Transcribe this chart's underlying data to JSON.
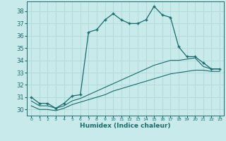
{
  "title": "",
  "xlabel": "Humidex (Indice chaleur)",
  "background_color": "#c8eaea",
  "grid_color": "#b0d8d8",
  "line_color": "#1a6b6b",
  "xlim": [
    -0.5,
    23.5
  ],
  "ylim": [
    29.5,
    38.8
  ],
  "yticks": [
    30,
    31,
    32,
    33,
    34,
    35,
    36,
    37,
    38
  ],
  "xticks": [
    0,
    1,
    2,
    3,
    4,
    5,
    6,
    7,
    8,
    9,
    10,
    11,
    12,
    13,
    14,
    15,
    16,
    17,
    18,
    19,
    20,
    21,
    22,
    23
  ],
  "curve1_x": [
    0,
    1,
    2,
    3,
    4,
    5,
    6,
    7,
    8,
    9,
    10,
    11,
    12,
    13,
    14,
    15,
    16,
    17,
    18,
    19,
    20,
    21,
    22,
    23
  ],
  "curve1_y": [
    31.0,
    30.5,
    30.5,
    30.1,
    30.5,
    31.1,
    31.2,
    36.3,
    36.5,
    37.3,
    37.8,
    37.3,
    37.0,
    37.0,
    37.3,
    38.4,
    37.7,
    37.5,
    35.1,
    34.3,
    34.3,
    33.8,
    33.3,
    33.3
  ],
  "curve2_x": [
    0,
    1,
    2,
    3,
    4,
    5,
    6,
    7,
    8,
    9,
    10,
    11,
    12,
    13,
    14,
    15,
    16,
    17,
    18,
    19,
    20,
    21,
    22,
    23
  ],
  "curve2_y": [
    30.7,
    30.3,
    30.3,
    30.1,
    30.3,
    30.7,
    30.9,
    31.2,
    31.5,
    31.8,
    32.1,
    32.4,
    32.7,
    33.0,
    33.3,
    33.6,
    33.8,
    34.0,
    34.0,
    34.1,
    34.2,
    33.5,
    33.3,
    33.3
  ],
  "curve3_x": [
    0,
    1,
    2,
    3,
    4,
    5,
    6,
    7,
    8,
    9,
    10,
    11,
    12,
    13,
    14,
    15,
    16,
    17,
    18,
    19,
    20,
    21,
    22,
    23
  ],
  "curve3_y": [
    30.3,
    30.0,
    30.0,
    29.9,
    30.1,
    30.4,
    30.6,
    30.8,
    31.0,
    31.2,
    31.5,
    31.7,
    31.9,
    32.1,
    32.3,
    32.5,
    32.7,
    32.9,
    33.0,
    33.1,
    33.2,
    33.2,
    33.1,
    33.1
  ]
}
